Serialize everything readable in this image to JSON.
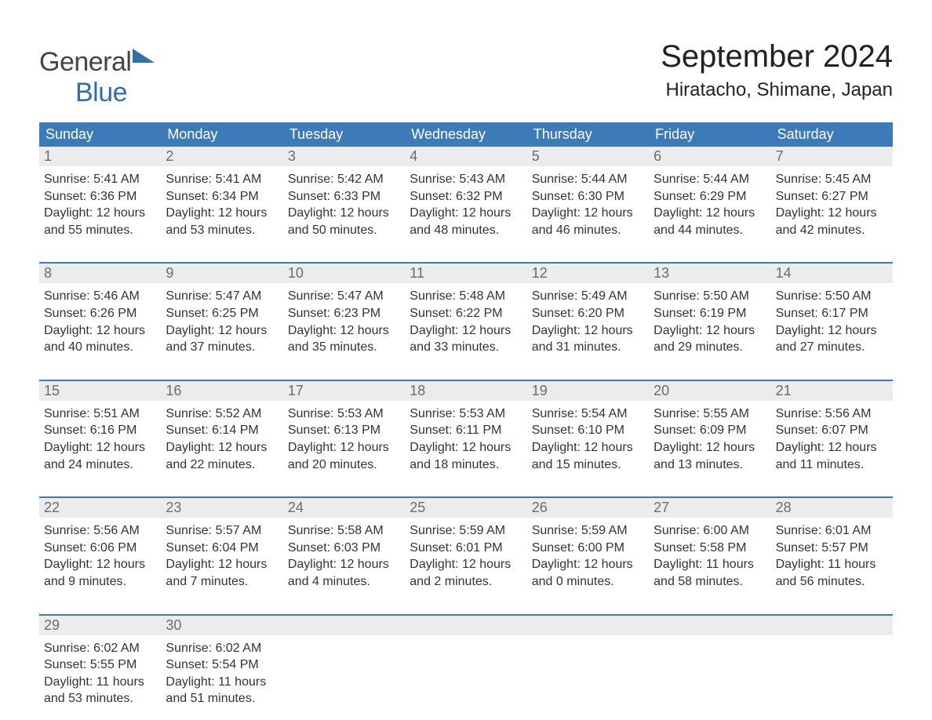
{
  "logo": {
    "word1": "General",
    "word2": "Blue"
  },
  "title": "September 2024",
  "location": "Hiratacho, Shimane, Japan",
  "colors": {
    "header_bg": "#3d7bb8",
    "header_text": "#ffffff",
    "daynum_bg": "#ececec",
    "daynum_text": "#6b6b6b",
    "week_border": "#3d7bb8",
    "body_text": "#333333",
    "logo_gray": "#444444",
    "logo_blue": "#2f6fad"
  },
  "day_labels": [
    "Sunday",
    "Monday",
    "Tuesday",
    "Wednesday",
    "Thursday",
    "Friday",
    "Saturday"
  ],
  "weeks": [
    {
      "border_top": false,
      "days": [
        {
          "num": "1",
          "sunrise": "Sunrise: 5:41 AM",
          "sunset": "Sunset: 6:36 PM",
          "d1": "Daylight: 12 hours",
          "d2": "and 55 minutes."
        },
        {
          "num": "2",
          "sunrise": "Sunrise: 5:41 AM",
          "sunset": "Sunset: 6:34 PM",
          "d1": "Daylight: 12 hours",
          "d2": "and 53 minutes."
        },
        {
          "num": "3",
          "sunrise": "Sunrise: 5:42 AM",
          "sunset": "Sunset: 6:33 PM",
          "d1": "Daylight: 12 hours",
          "d2": "and 50 minutes."
        },
        {
          "num": "4",
          "sunrise": "Sunrise: 5:43 AM",
          "sunset": "Sunset: 6:32 PM",
          "d1": "Daylight: 12 hours",
          "d2": "and 48 minutes."
        },
        {
          "num": "5",
          "sunrise": "Sunrise: 5:44 AM",
          "sunset": "Sunset: 6:30 PM",
          "d1": "Daylight: 12 hours",
          "d2": "and 46 minutes."
        },
        {
          "num": "6",
          "sunrise": "Sunrise: 5:44 AM",
          "sunset": "Sunset: 6:29 PM",
          "d1": "Daylight: 12 hours",
          "d2": "and 44 minutes."
        },
        {
          "num": "7",
          "sunrise": "Sunrise: 5:45 AM",
          "sunset": "Sunset: 6:27 PM",
          "d1": "Daylight: 12 hours",
          "d2": "and 42 minutes."
        }
      ]
    },
    {
      "border_top": true,
      "days": [
        {
          "num": "8",
          "sunrise": "Sunrise: 5:46 AM",
          "sunset": "Sunset: 6:26 PM",
          "d1": "Daylight: 12 hours",
          "d2": "and 40 minutes."
        },
        {
          "num": "9",
          "sunrise": "Sunrise: 5:47 AM",
          "sunset": "Sunset: 6:25 PM",
          "d1": "Daylight: 12 hours",
          "d2": "and 37 minutes."
        },
        {
          "num": "10",
          "sunrise": "Sunrise: 5:47 AM",
          "sunset": "Sunset: 6:23 PM",
          "d1": "Daylight: 12 hours",
          "d2": "and 35 minutes."
        },
        {
          "num": "11",
          "sunrise": "Sunrise: 5:48 AM",
          "sunset": "Sunset: 6:22 PM",
          "d1": "Daylight: 12 hours",
          "d2": "and 33 minutes."
        },
        {
          "num": "12",
          "sunrise": "Sunrise: 5:49 AM",
          "sunset": "Sunset: 6:20 PM",
          "d1": "Daylight: 12 hours",
          "d2": "and 31 minutes."
        },
        {
          "num": "13",
          "sunrise": "Sunrise: 5:50 AM",
          "sunset": "Sunset: 6:19 PM",
          "d1": "Daylight: 12 hours",
          "d2": "and 29 minutes."
        },
        {
          "num": "14",
          "sunrise": "Sunrise: 5:50 AM",
          "sunset": "Sunset: 6:17 PM",
          "d1": "Daylight: 12 hours",
          "d2": "and 27 minutes."
        }
      ]
    },
    {
      "border_top": true,
      "days": [
        {
          "num": "15",
          "sunrise": "Sunrise: 5:51 AM",
          "sunset": "Sunset: 6:16 PM",
          "d1": "Daylight: 12 hours",
          "d2": "and 24 minutes."
        },
        {
          "num": "16",
          "sunrise": "Sunrise: 5:52 AM",
          "sunset": "Sunset: 6:14 PM",
          "d1": "Daylight: 12 hours",
          "d2": "and 22 minutes."
        },
        {
          "num": "17",
          "sunrise": "Sunrise: 5:53 AM",
          "sunset": "Sunset: 6:13 PM",
          "d1": "Daylight: 12 hours",
          "d2": "and 20 minutes."
        },
        {
          "num": "18",
          "sunrise": "Sunrise: 5:53 AM",
          "sunset": "Sunset: 6:11 PM",
          "d1": "Daylight: 12 hours",
          "d2": "and 18 minutes."
        },
        {
          "num": "19",
          "sunrise": "Sunrise: 5:54 AM",
          "sunset": "Sunset: 6:10 PM",
          "d1": "Daylight: 12 hours",
          "d2": "and 15 minutes."
        },
        {
          "num": "20",
          "sunrise": "Sunrise: 5:55 AM",
          "sunset": "Sunset: 6:09 PM",
          "d1": "Daylight: 12 hours",
          "d2": "and 13 minutes."
        },
        {
          "num": "21",
          "sunrise": "Sunrise: 5:56 AM",
          "sunset": "Sunset: 6:07 PM",
          "d1": "Daylight: 12 hours",
          "d2": "and 11 minutes."
        }
      ]
    },
    {
      "border_top": true,
      "days": [
        {
          "num": "22",
          "sunrise": "Sunrise: 5:56 AM",
          "sunset": "Sunset: 6:06 PM",
          "d1": "Daylight: 12 hours",
          "d2": "and 9 minutes."
        },
        {
          "num": "23",
          "sunrise": "Sunrise: 5:57 AM",
          "sunset": "Sunset: 6:04 PM",
          "d1": "Daylight: 12 hours",
          "d2": "and 7 minutes."
        },
        {
          "num": "24",
          "sunrise": "Sunrise: 5:58 AM",
          "sunset": "Sunset: 6:03 PM",
          "d1": "Daylight: 12 hours",
          "d2": "and 4 minutes."
        },
        {
          "num": "25",
          "sunrise": "Sunrise: 5:59 AM",
          "sunset": "Sunset: 6:01 PM",
          "d1": "Daylight: 12 hours",
          "d2": "and 2 minutes."
        },
        {
          "num": "26",
          "sunrise": "Sunrise: 5:59 AM",
          "sunset": "Sunset: 6:00 PM",
          "d1": "Daylight: 12 hours",
          "d2": "and 0 minutes."
        },
        {
          "num": "27",
          "sunrise": "Sunrise: 6:00 AM",
          "sunset": "Sunset: 5:58 PM",
          "d1": "Daylight: 11 hours",
          "d2": "and 58 minutes."
        },
        {
          "num": "28",
          "sunrise": "Sunrise: 6:01 AM",
          "sunset": "Sunset: 5:57 PM",
          "d1": "Daylight: 11 hours",
          "d2": "and 56 minutes."
        }
      ]
    },
    {
      "border_top": true,
      "days": [
        {
          "num": "29",
          "sunrise": "Sunrise: 6:02 AM",
          "sunset": "Sunset: 5:55 PM",
          "d1": "Daylight: 11 hours",
          "d2": "and 53 minutes."
        },
        {
          "num": "30",
          "sunrise": "Sunrise: 6:02 AM",
          "sunset": "Sunset: 5:54 PM",
          "d1": "Daylight: 11 hours",
          "d2": "and 51 minutes."
        },
        {
          "empty": true
        },
        {
          "empty": true
        },
        {
          "empty": true
        },
        {
          "empty": true
        },
        {
          "empty": true
        }
      ]
    }
  ]
}
